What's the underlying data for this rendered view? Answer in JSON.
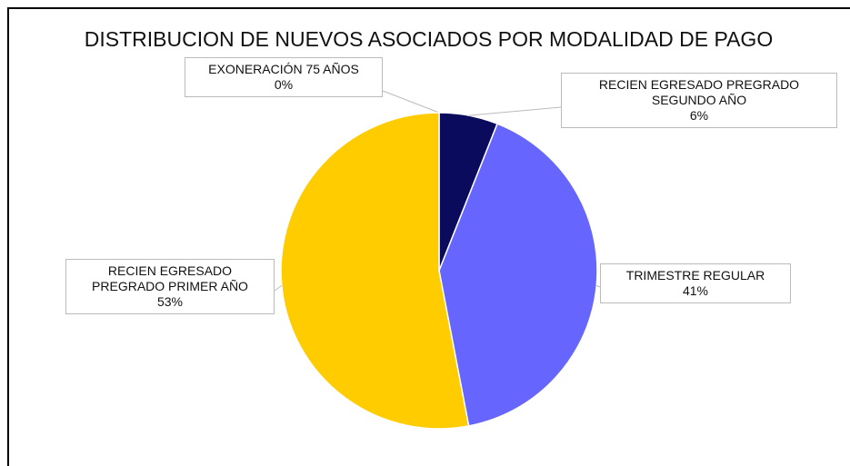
{
  "chart_data": {
    "type": "pie",
    "title": "DISTRIBUCION DE NUEVOS ASOCIADOS POR MODALIDAD DE PAGO",
    "categories": [
      "EXONERACIÓN 75 AÑOS",
      "RECIEN EGRESADO PREGRADO SEGUNDO AÑO",
      "TRIMESTRE REGULAR",
      "RECIEN EGRESADO PREGRADO PRIMER AÑO"
    ],
    "values": [
      0,
      6,
      41,
      53
    ],
    "value_labels": [
      "0%",
      "6%",
      "41%",
      "53%"
    ],
    "colors": [
      "#e06666",
      "#0b0b5e",
      "#6666ff",
      "#ffcc00"
    ]
  }
}
